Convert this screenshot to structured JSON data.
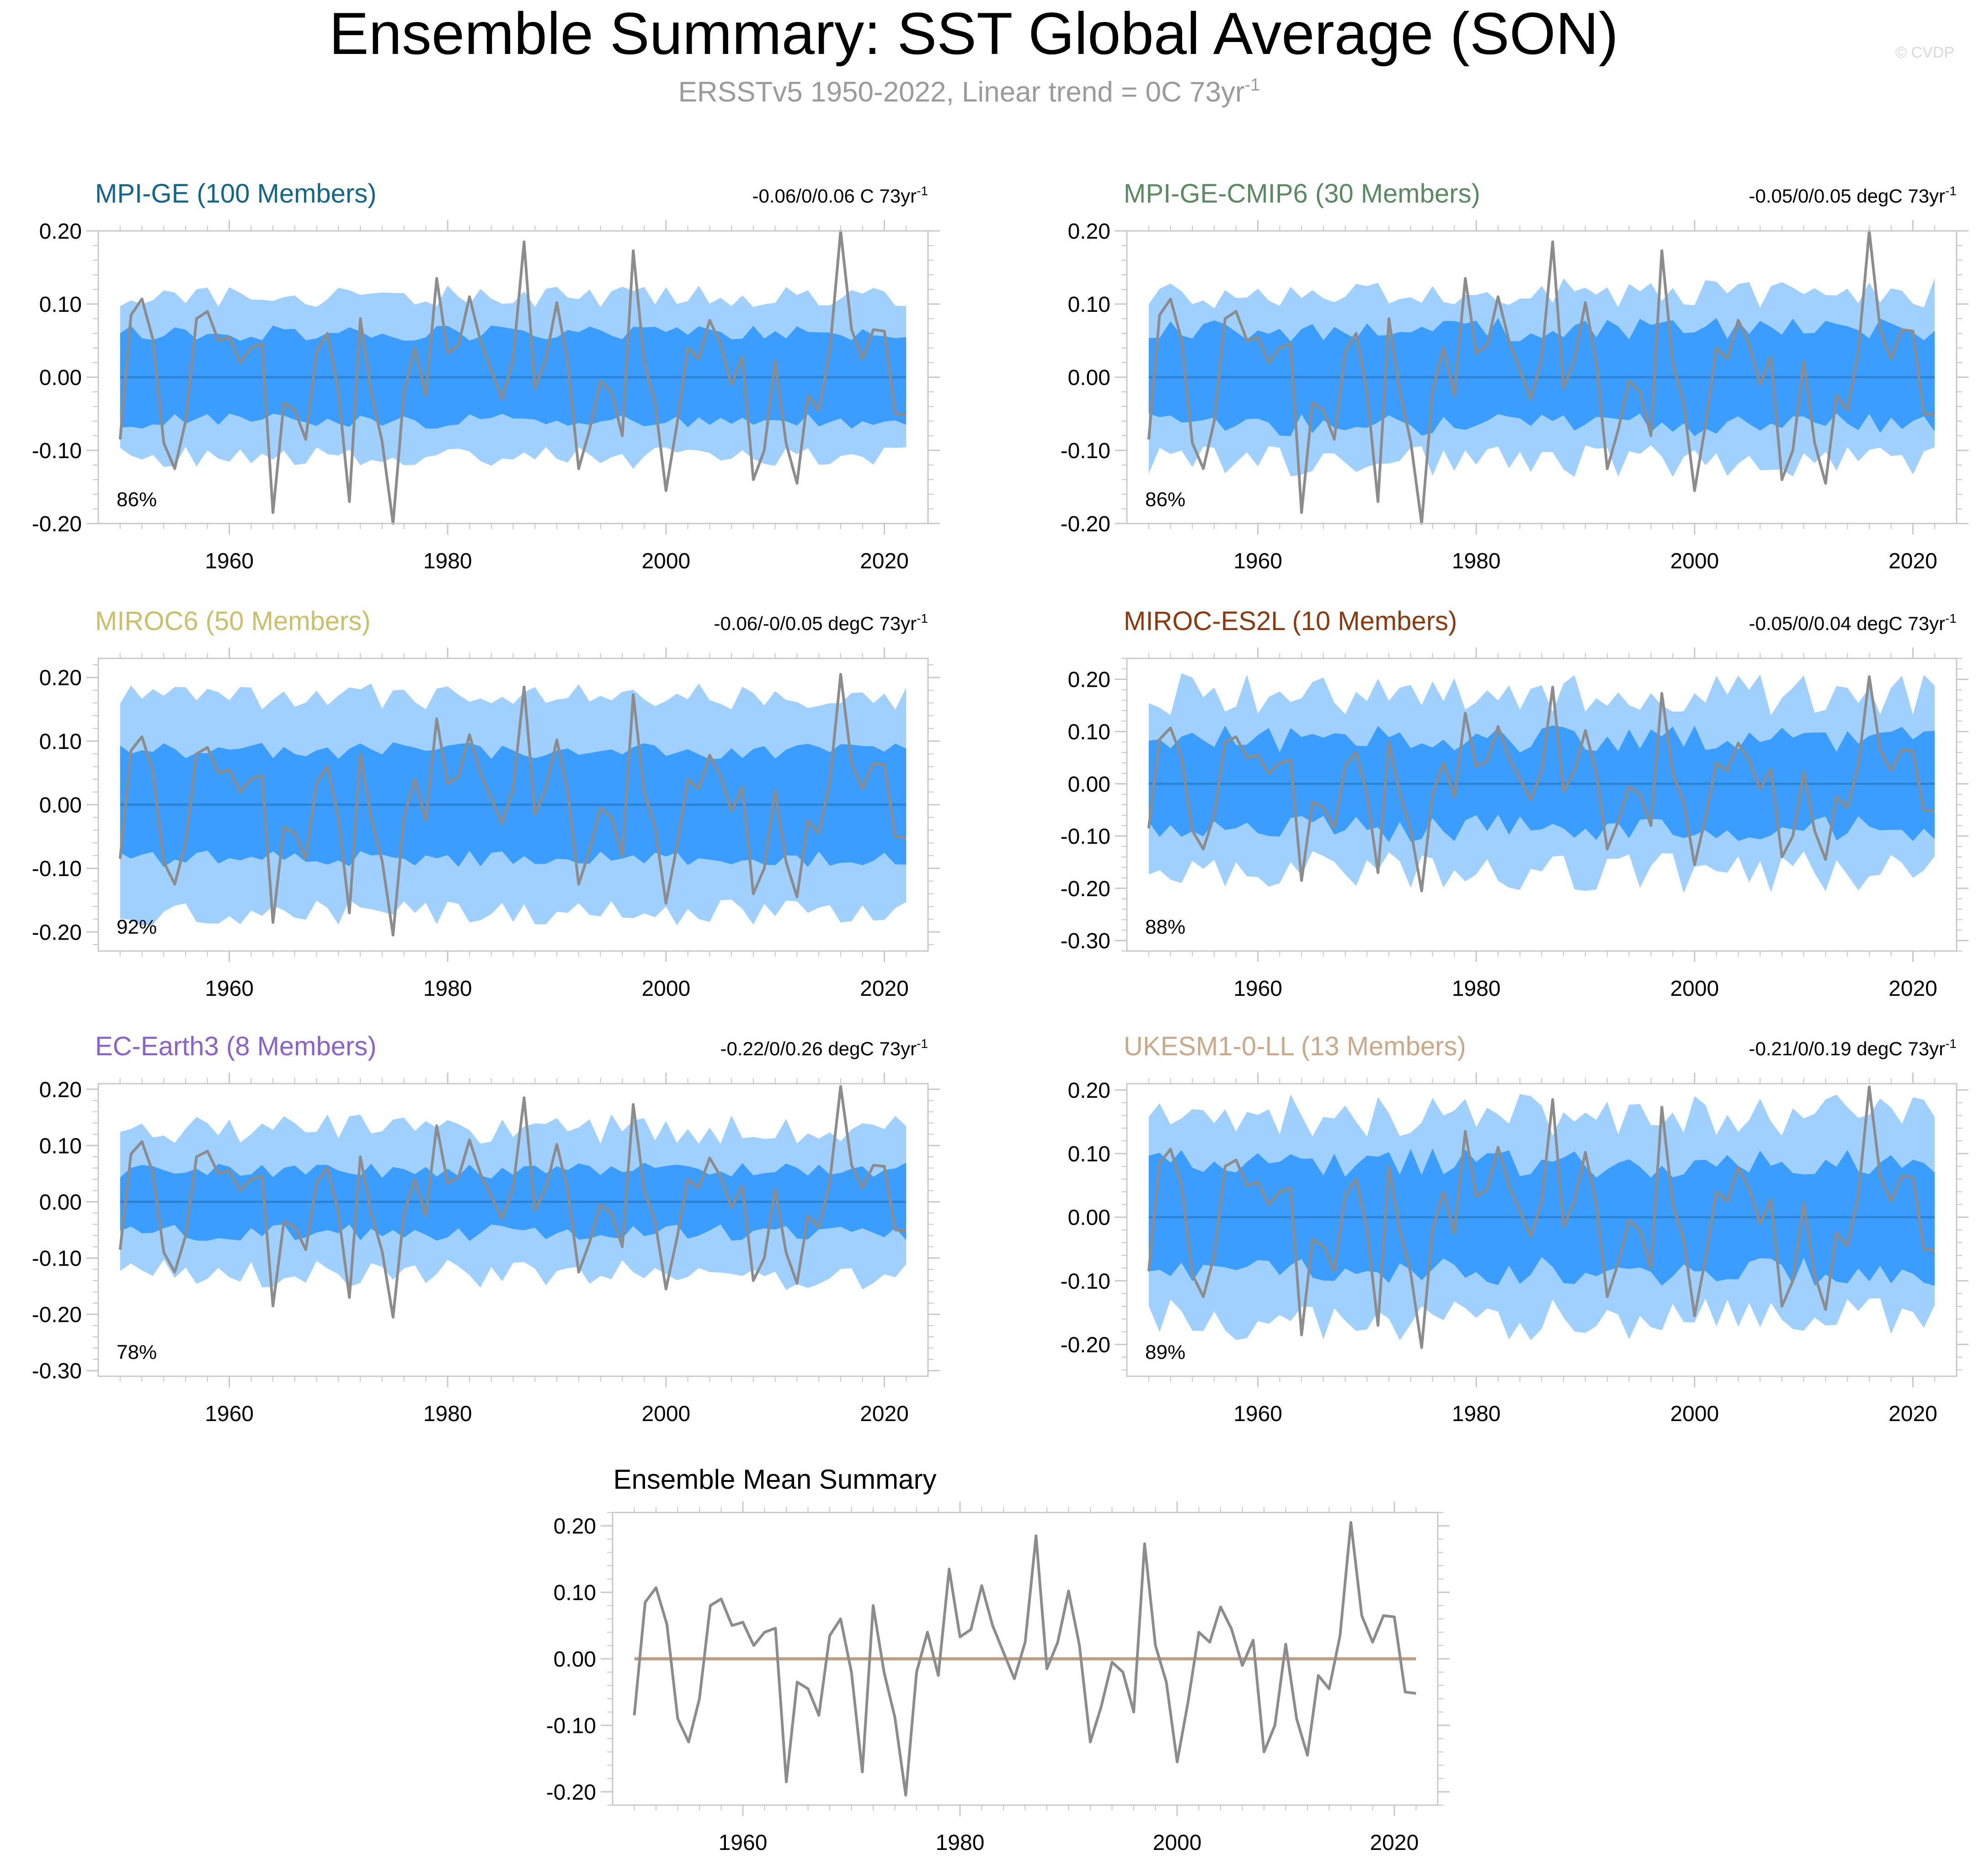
{
  "header": {
    "title": "Ensemble Summary: SST Global Average (SON)",
    "subtitle_main": "ERSSTv5 1950-2022, Linear trend = 0C 73yr",
    "subtitle_sup": "-1",
    "watermark": "© CVDP"
  },
  "colors": {
    "band_outer": "#9fd0ff",
    "band_inner": "#3a9dff",
    "ens_mean_line": "#2b84d6",
    "obs_line": "#8c8c8c",
    "summary_mean_line": "#b89f86"
  },
  "chart_data": {
    "type": "line",
    "x_range": [
      1948,
      2024
    ],
    "x_ticks": [
      1960,
      1980,
      2000,
      2020
    ],
    "observations": {
      "name": "ERSSTv5",
      "x_start": 1950,
      "values": [
        -0.085,
        0.085,
        0.107,
        0.052,
        -0.09,
        -0.125,
        -0.06,
        0.08,
        0.09,
        0.05,
        0.055,
        0.02,
        0.04,
        0.046,
        -0.185,
        -0.035,
        -0.045,
        -0.085,
        0.035,
        0.06,
        -0.02,
        -0.17,
        0.08,
        -0.02,
        -0.088,
        -0.205,
        -0.02,
        0.04,
        -0.025,
        0.135,
        0.033,
        0.044,
        0.11,
        0.05,
        0.01,
        -0.03,
        0.025,
        0.185,
        -0.015,
        0.025,
        0.102,
        0.02,
        -0.125,
        -0.072,
        -0.005,
        -0.02,
        -0.08,
        0.173,
        0.02,
        -0.035,
        -0.155,
        -0.065,
        0.04,
        0.025,
        0.078,
        0.045,
        -0.01,
        0.028,
        -0.14,
        -0.1,
        0.022,
        -0.09,
        -0.145,
        -0.025,
        -0.045,
        0.035,
        0.205,
        0.065,
        0.025,
        0.065,
        0.063,
        -0.05,
        -0.052
      ]
    },
    "panels": [
      {
        "title": "MPI-GE (100 Members)",
        "title_color": "#14658c",
        "trend_text": "-0.06/0/0.06 C 73yr",
        "trend_sup": "-1",
        "pct_label": "86%",
        "ylim": [
          -0.2,
          0.2
        ],
        "y_ticks": [
          -0.2,
          -0.1,
          0.0,
          0.1,
          0.2
        ],
        "y_tick_labels": [
          "-0.20",
          "-0.10",
          "0.00",
          "0.10",
          "0.20"
        ],
        "x_tick_labels": [
          "1960",
          "1980",
          "2000",
          "2020"
        ],
        "inner": 0.06,
        "outer": 0.11,
        "amp": 0.4,
        "seed": 1,
        "ens_mean": 0.0
      },
      {
        "title": "MPI-GE-CMIP6 (30 Members)",
        "title_color": "#5b8a62",
        "trend_text": "-0.05/0/0.05 degC 73yr",
        "trend_sup": "-1",
        "pct_label": "86%",
        "ylim": [
          -0.2,
          0.2
        ],
        "y_ticks": [
          -0.2,
          -0.1,
          0.0,
          0.1,
          0.2
        ],
        "y_tick_labels": [
          "-0.20",
          "-0.10",
          "0.00",
          "0.10",
          "0.20"
        ],
        "x_tick_labels": [
          "1960",
          "1980",
          "2000",
          "2020"
        ],
        "inner": 0.065,
        "outer": 0.115,
        "amp": 0.55,
        "seed": 2,
        "ens_mean": 0.0
      },
      {
        "title": "MIROC6 (50 Members)",
        "title_color": "#cbbf6c",
        "trend_text": "-0.06/-0/0.05 degC 73yr",
        "trend_sup": "-1",
        "pct_label": "92%",
        "ylim": [
          -0.23,
          0.23
        ],
        "y_ticks": [
          -0.2,
          -0.1,
          0.0,
          0.1,
          0.2
        ],
        "y_tick_labels": [
          "-0.20",
          "-0.10",
          "0.00",
          "0.10",
          "0.20"
        ],
        "x_tick_labels": [
          "1960",
          "1980",
          "2000",
          "2020"
        ],
        "inner": 0.085,
        "outer": 0.17,
        "amp": 0.35,
        "seed": 3,
        "ens_mean": 0.0
      },
      {
        "title": "MIROC-ES2L (10 Members)",
        "title_color": "#8b3a10",
        "trend_text": "-0.05/0/0.04 degC 73yr",
        "trend_sup": "-1",
        "pct_label": "88%",
        "ylim": [
          -0.32,
          0.24
        ],
        "y_ticks": [
          -0.3,
          -0.2,
          -0.1,
          0.0,
          0.1,
          0.2
        ],
        "y_tick_labels": [
          "-0.30",
          "-0.20",
          "-0.10",
          "0.00",
          "0.10",
          "0.20"
        ],
        "x_tick_labels": [
          "1960",
          "1980",
          "2000",
          "2020"
        ],
        "inner": 0.085,
        "outer": 0.17,
        "amp": 0.7,
        "seed": 4,
        "ens_mean": 0.0
      },
      {
        "title": "EC-Earth3 (8 Members)",
        "title_color": "#8a62cc",
        "trend_text": "-0.22/0/0.26 degC 73yr",
        "trend_sup": "-1",
        "pct_label": "78%",
        "ylim": [
          -0.31,
          0.21
        ],
        "y_ticks": [
          -0.3,
          -0.2,
          -0.1,
          0.0,
          0.1,
          0.2
        ],
        "y_tick_labels": [
          "-0.30",
          "-0.20",
          "-0.10",
          "0.00",
          "0.10",
          "0.20"
        ],
        "x_tick_labels": [
          "1960",
          "1980",
          "2000",
          "2020"
        ],
        "inner": 0.055,
        "outer": 0.13,
        "amp": 0.6,
        "seed": 5,
        "ens_mean": 0.0
      },
      {
        "title": "UKESM1-0-LL (13 Members)",
        "title_color": "#c9a98a",
        "trend_text": "-0.21/0/0.19 degC 73yr",
        "trend_sup": "-1",
        "pct_label": "89%",
        "ylim": [
          -0.25,
          0.21
        ],
        "y_ticks": [
          -0.2,
          -0.1,
          0.0,
          0.1,
          0.2
        ],
        "y_tick_labels": [
          "-0.20",
          "-0.10",
          "0.00",
          "0.10",
          "0.20"
        ],
        "x_tick_labels": [
          "1960",
          "1980",
          "2000",
          "2020"
        ],
        "inner": 0.085,
        "outer": 0.16,
        "amp": 0.6,
        "seed": 6,
        "ens_mean": 0.0
      }
    ],
    "summary": {
      "title": "Ensemble Mean Summary",
      "ylim": [
        -0.22,
        0.22
      ],
      "y_ticks": [
        -0.2,
        -0.1,
        0.0,
        0.1,
        0.2
      ],
      "y_tick_labels": [
        "-0.20",
        "-0.10",
        "0.00",
        "0.10",
        "0.20"
      ],
      "x_tick_labels": [
        "1960",
        "1980",
        "2000",
        "2020"
      ],
      "mean_value": 0.0
    }
  }
}
